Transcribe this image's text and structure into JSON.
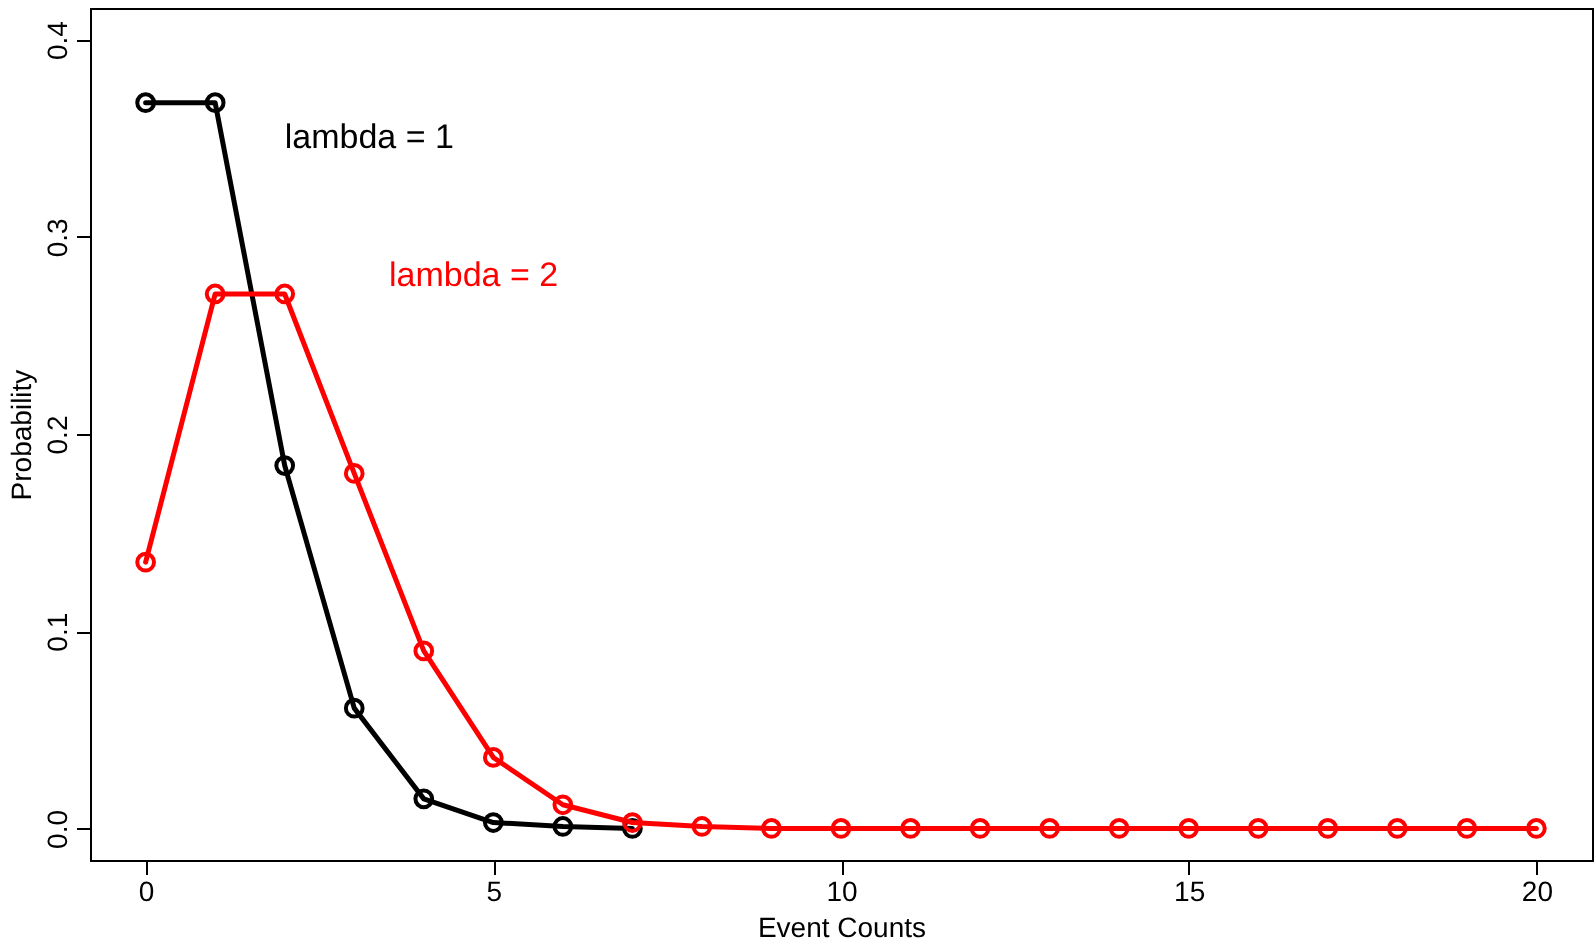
{
  "chart_data": {
    "type": "line",
    "xlabel": "Event Counts",
    "ylabel": "Probability",
    "x": [
      0,
      1,
      2,
      3,
      4,
      5,
      6,
      7,
      8,
      9,
      10,
      11,
      12,
      13,
      14,
      15,
      16,
      17,
      18,
      19,
      20
    ],
    "series": [
      {
        "name": "lambda = 1",
        "color": "#000000",
        "values": [
          0.368,
          0.368,
          0.184,
          0.061,
          0.015,
          0.003,
          0.001,
          0.0,
          null,
          null,
          null,
          null,
          null,
          null,
          null,
          null,
          null,
          null,
          null,
          null,
          null
        ]
      },
      {
        "name": "lambda = 2",
        "color": "#ff0000",
        "values": [
          0.135,
          0.271,
          0.271,
          0.18,
          0.09,
          0.036,
          0.012,
          0.003,
          0.001,
          0.0,
          0.0,
          0.0,
          0.0,
          0.0,
          0.0,
          0.0,
          0.0,
          0.0,
          0.0,
          0.0,
          0.0
        ]
      }
    ],
    "xlim": [
      -0.8,
      20.8
    ],
    "ylim": [
      -0.016,
      0.416
    ],
    "xticks": [
      0,
      5,
      10,
      15,
      20
    ],
    "yticks": [
      {
        "value": 0,
        "label": "0.0"
      },
      0.1,
      0.2,
      0.3,
      0.4
    ],
    "marker": "circle",
    "line_style": "solid",
    "grid": false
  }
}
